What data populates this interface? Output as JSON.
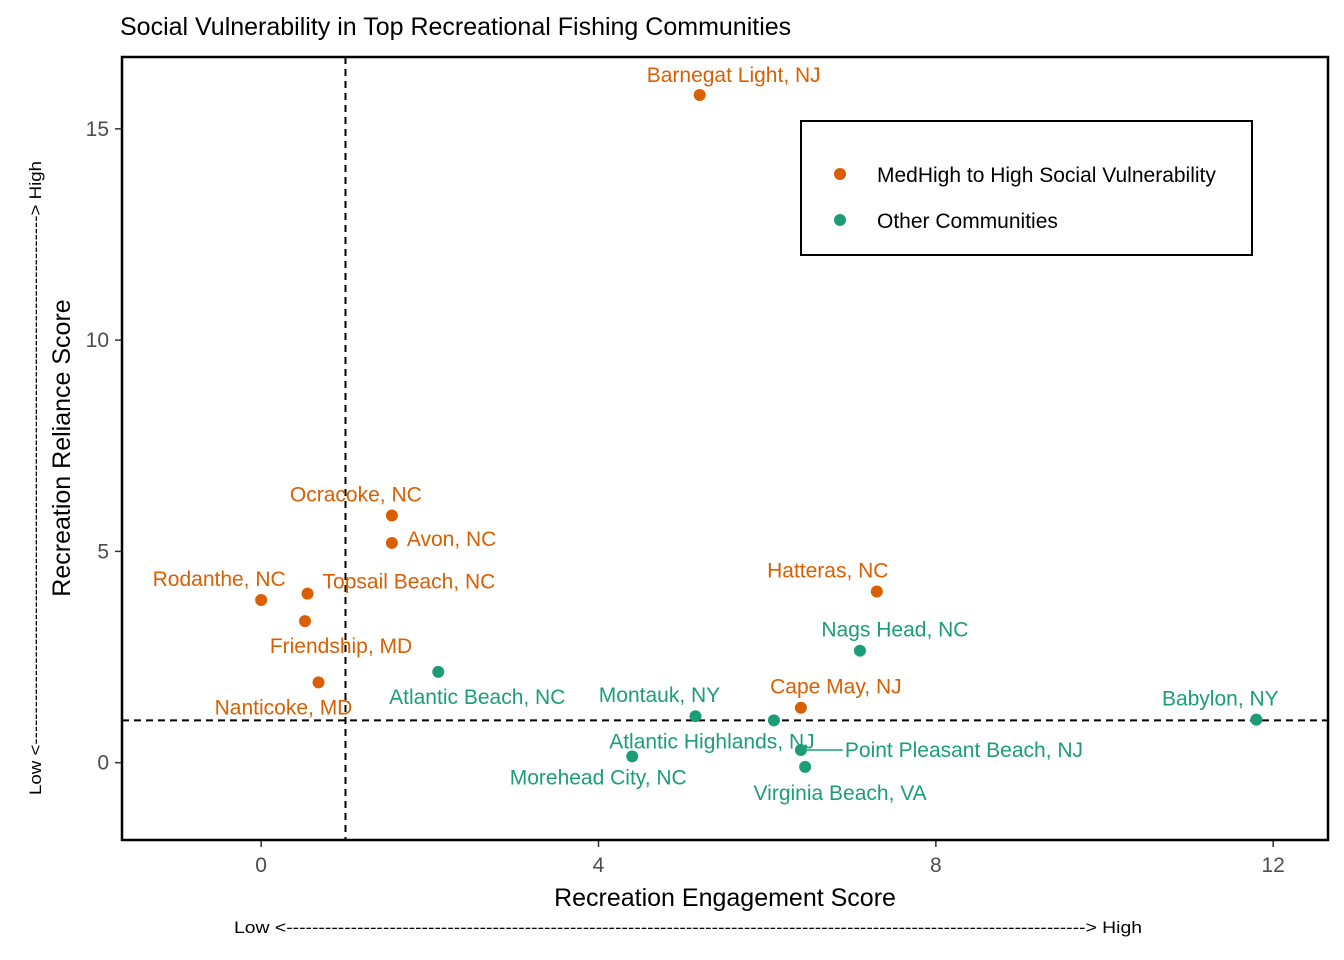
{
  "chart_data": {
    "type": "scatter",
    "title": "Social Vulnerability in Top Recreational Fishing Communities",
    "xlabel": "Recreation Engagement Score",
    "ylabel": "Recreation Reliance Score",
    "x_arrow": "Low <----------------------------------------------------------------------------------------------------------------------------> High",
    "y_arrow": "Low <-------------------------------------------------------------------------------------> High",
    "xlim": [
      -1.65,
      12.65
    ],
    "ylim": [
      -1.83,
      16.7
    ],
    "x_ticks": [
      0,
      4,
      8,
      12
    ],
    "y_ticks": [
      0,
      5,
      10,
      15
    ],
    "reference_lines": {
      "x": 1,
      "y": 1
    },
    "grid": false,
    "legend_position": "top-right",
    "series": [
      {
        "name": "MedHigh to High Social Vulnerability",
        "color": "#d95f02",
        "points": [
          {
            "label": "Barnegat Light, NJ",
            "x": 5.2,
            "y": 15.8
          },
          {
            "label": "Ocracoke, NC",
            "x": 1.55,
            "y": 5.85
          },
          {
            "label": "Avon, NC",
            "x": 1.55,
            "y": 5.2
          },
          {
            "label": "Topsail Beach, NC",
            "x": 0.55,
            "y": 4.0
          },
          {
            "label": "Rodanthe, NC",
            "x": 0.0,
            "y": 3.85
          },
          {
            "label": "Friendship, MD",
            "x": 0.52,
            "y": 3.35
          },
          {
            "label": "Nanticoke, MD",
            "x": 0.68,
            "y": 1.9
          },
          {
            "label": "Hatteras, NC",
            "x": 7.3,
            "y": 4.05
          },
          {
            "label": "Cape May, NJ",
            "x": 6.4,
            "y": 1.3
          }
        ]
      },
      {
        "name": "Other Communities",
        "color": "#1b9e77",
        "points": [
          {
            "label": "Nags Head, NC",
            "x": 7.1,
            "y": 2.65
          },
          {
            "label": "Atlantic Beach, NC",
            "x": 2.1,
            "y": 2.15
          },
          {
            "label": "Montauk, NY",
            "x": 5.15,
            "y": 1.1
          },
          {
            "label": "Atlantic Highlands, NJ",
            "x": 6.08,
            "y": 1.0
          },
          {
            "label": "Babylon, NY",
            "x": 11.8,
            "y": 1.02
          },
          {
            "label": "Point Pleasant Beach, NJ",
            "x": 6.4,
            "y": 0.3
          },
          {
            "label": "Morehead City, NC",
            "x": 4.4,
            "y": 0.15
          },
          {
            "label": "Virginia Beach, VA",
            "x": 6.45,
            "y": -0.1
          }
        ]
      }
    ]
  }
}
